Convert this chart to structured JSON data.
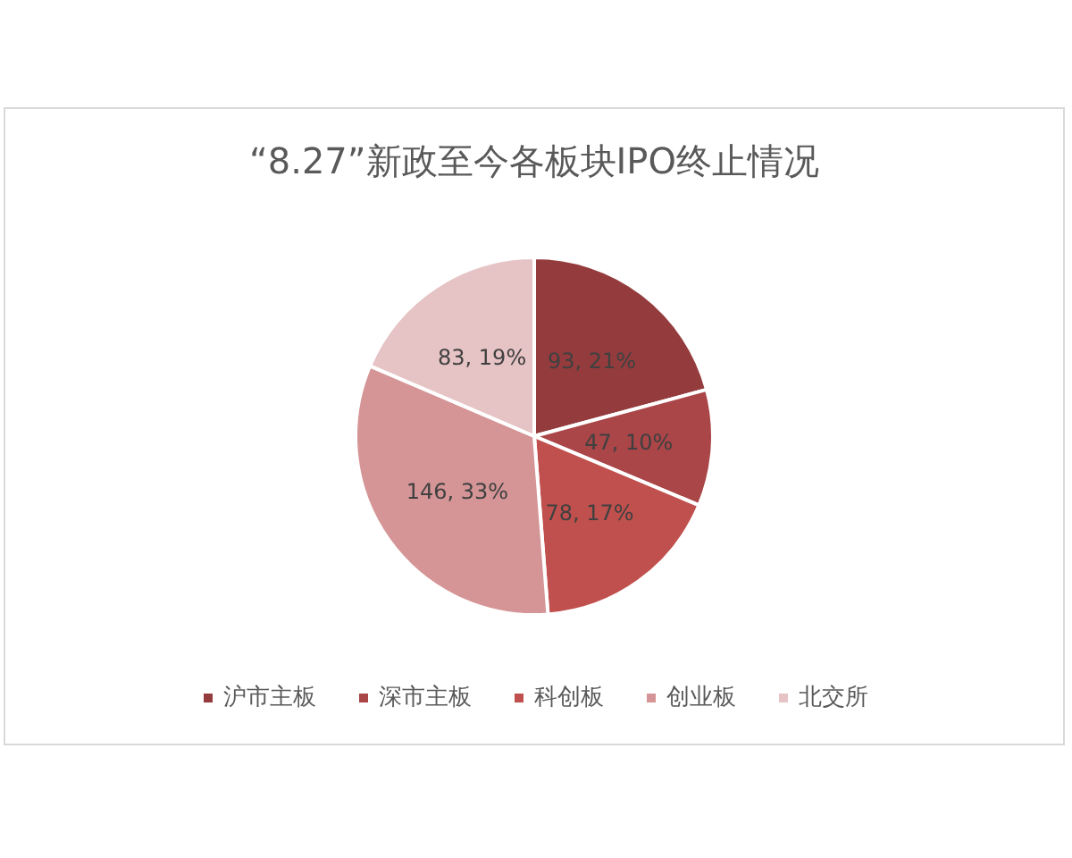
{
  "chart_data": {
    "type": "pie",
    "title": "“8.27”新政至今各板块IPO终止情况",
    "categories": [
      "沪市主板",
      "深市主板",
      "科创板",
      "创业板",
      "北交所"
    ],
    "values": [
      93,
      47,
      78,
      146,
      83
    ],
    "colors": [
      "#943b3d",
      "#aa4548",
      "#c0504d",
      "#d59597",
      "#e6c3c4"
    ],
    "value_labels": [
      "93, 21%",
      "47, 10%",
      "78, 17%",
      "146, 33%",
      "83, 19%"
    ],
    "legend": "bottom"
  }
}
